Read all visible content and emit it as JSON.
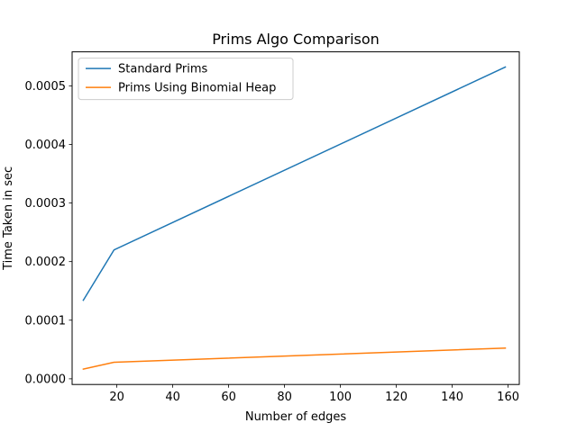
{
  "chart_data": {
    "type": "line",
    "title": "Prims Algo Comparison",
    "xlabel": "Number of edges",
    "ylabel": "Time Taken in sec",
    "xlim": [
      4,
      164
    ],
    "ylim": [
      -9.7e-06,
      0.000558
    ],
    "xticks": [
      20,
      40,
      60,
      80,
      100,
      120,
      140,
      160
    ],
    "xtick_labels": [
      "20",
      "40",
      "60",
      "80",
      "100",
      "120",
      "140",
      "160"
    ],
    "yticks": [
      0,
      0.0001,
      0.0002,
      0.0003,
      0.0004,
      0.0005
    ],
    "ytick_labels": [
      "0.0000",
      "0.0001",
      "0.0002",
      "0.0003",
      "0.0004",
      "0.0005"
    ],
    "grid": false,
    "legend_position": "top-left",
    "series": [
      {
        "name": "Standard Prims",
        "color": "#1f77b4",
        "x": [
          8,
          19,
          159
        ],
        "y": [
          0.000134,
          0.00022,
          0.000532
        ]
      },
      {
        "name": "Prims Using Binomial Heap",
        "color": "#ff7f0e",
        "x": [
          8,
          19,
          159
        ],
        "y": [
          1.65e-05,
          2.82e-05,
          5.24e-05
        ]
      }
    ]
  }
}
